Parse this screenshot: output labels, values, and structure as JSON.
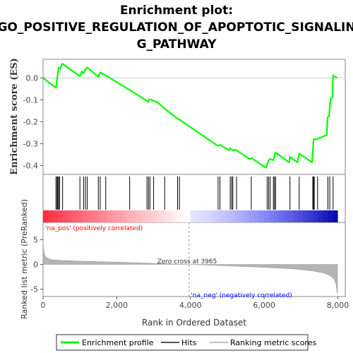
{
  "chart_data": {
    "type": "line",
    "title": "Enrichment plot: GO_POSITIVE_REGULATION_OF_APOPTOTIC_SIGNALIN G_PATHWAY",
    "title_lines": [
      "Enrichment plot:",
      "GO_POSITIVE_REGULATION_OF_APOPTOTIC_SIGNALIN",
      "G_PATHWAY"
    ],
    "top_panel": {
      "ylabel": "Enrichment score (ES)",
      "yticks": [
        "0.0",
        "-0.1",
        "-0.2",
        "-0.3",
        "-0.4"
      ],
      "ytick_values": [
        0.0,
        -0.1,
        -0.2,
        -0.3,
        -0.4
      ],
      "ylim": [
        -0.44,
        0.085
      ],
      "series": [
        {
          "name": "Enrichment profile",
          "color": "#00ff00",
          "x": [
            0,
            350,
            370,
            400,
            420,
            460,
            520,
            1000,
            1050,
            1100,
            1150,
            1200,
            1500,
            1550,
            1600,
            1700,
            2300,
            2350,
            2820,
            2850,
            2880,
            2950,
            3000,
            3100,
            3300,
            3600,
            3700,
            4700,
            4750,
            4800,
            5050,
            5080,
            5100,
            5150,
            5200,
            5250,
            5600,
            5650,
            6050,
            6100,
            6150,
            6250,
            6300,
            6680,
            6700,
            6900,
            6950,
            7300,
            7320,
            7340,
            7420,
            7700,
            7720,
            7760,
            7800,
            7850,
            7870,
            7980
          ],
          "y": [
            0.0,
            -0.045,
            -0.02,
            0.02,
            0.047,
            0.04,
            0.065,
            0.008,
            0.03,
            0.02,
            0.04,
            0.048,
            0.005,
            0.025,
            0.02,
            0.012,
            -0.05,
            -0.055,
            -0.105,
            -0.11,
            -0.098,
            -0.1,
            -0.105,
            -0.11,
            -0.14,
            -0.18,
            -0.19,
            -0.305,
            -0.31,
            -0.305,
            -0.33,
            -0.32,
            -0.325,
            -0.33,
            -0.328,
            -0.33,
            -0.37,
            -0.365,
            -0.41,
            -0.385,
            -0.37,
            -0.375,
            -0.34,
            -0.385,
            -0.36,
            -0.385,
            -0.345,
            -0.385,
            -0.34,
            -0.28,
            -0.28,
            -0.26,
            -0.18,
            -0.175,
            -0.095,
            -0.09,
            0.012,
            0.0
          ]
        }
      ]
    },
    "hits_panel": {
      "legend_name": "Hits",
      "hit_positions": [
        350,
        380,
        400,
        420,
        450,
        530,
        1000,
        1100,
        1150,
        1200,
        1500,
        1550,
        1700,
        2350,
        2820,
        2860,
        2900,
        3000,
        3300,
        3650,
        3700,
        4750,
        4800,
        5080,
        5120,
        5150,
        5250,
        5650,
        6080,
        6120,
        6160,
        6250,
        6280,
        6310,
        6700,
        6950,
        7320,
        7340,
        7360,
        7450,
        7730,
        7780,
        7870
      ]
    },
    "ranked_panel": {
      "ylabel": "Ranked list metric (PreRanked)",
      "yticks": [
        "5",
        "0",
        "-5"
      ],
      "ytick_values": [
        5,
        0,
        -5
      ],
      "ylim": [
        -6.5,
        8.5
      ],
      "legend_name": "Ranking metric scores",
      "zero_cross_label": "Zero cross at 3965",
      "zero_cross": 3965,
      "pos_label": "'na_pos' (positively correlated)",
      "neg_label": "'na_neg' (negatively correlated)",
      "metric_x": [
        0,
        10,
        30,
        60,
        100,
        200,
        300,
        500,
        1000,
        2000,
        3000,
        3965,
        5000,
        6000,
        6800,
        7300,
        7600,
        7800,
        7900,
        7950,
        7975,
        7990
      ],
      "metric_y": [
        5.0,
        3.3,
        2.2,
        1.6,
        1.3,
        1.0,
        0.9,
        0.8,
        0.65,
        0.45,
        0.2,
        0.0,
        -0.3,
        -0.6,
        -0.9,
        -1.3,
        -1.7,
        -2.3,
        -3.0,
        -4.0,
        -5.2,
        -6.0
      ]
    },
    "xlabel": "Rank in Ordered Dataset",
    "xticks": [
      "0",
      "2,000",
      "4,000",
      "6,000",
      "8,000"
    ],
    "xtick_values": [
      0,
      2000,
      4000,
      6000,
      8000
    ],
    "xlim": [
      0,
      8200
    ],
    "legend": [
      "Enrichment profile",
      "Hits",
      "Ranking metric scores"
    ]
  }
}
